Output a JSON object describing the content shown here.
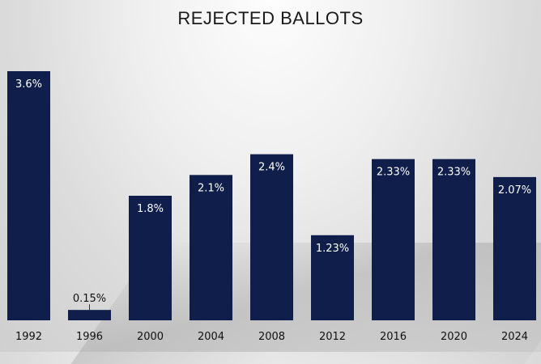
{
  "chart_data": {
    "type": "bar",
    "title": "REJECTED BALLOTS",
    "xlabel": "",
    "ylabel": "",
    "categories": [
      "1992",
      "1996",
      "2000",
      "2004",
      "2008",
      "2012",
      "2016",
      "2020",
      "2024"
    ],
    "values": [
      3.6,
      0.15,
      1.8,
      2.1,
      2.4,
      1.23,
      2.33,
      2.33,
      2.07
    ],
    "data_labels": [
      "3.6%",
      "0.15%",
      "1.8%",
      "2.1%",
      "2.4%",
      "1.23%",
      "2.33%",
      "2.33%",
      "2.07%"
    ],
    "ylim": [
      0,
      3.6
    ],
    "grid": false,
    "legend": "none",
    "colors": {
      "bar": "#0f1e4a",
      "label_inside": "#ffffff",
      "label_outside": "#111111"
    }
  }
}
